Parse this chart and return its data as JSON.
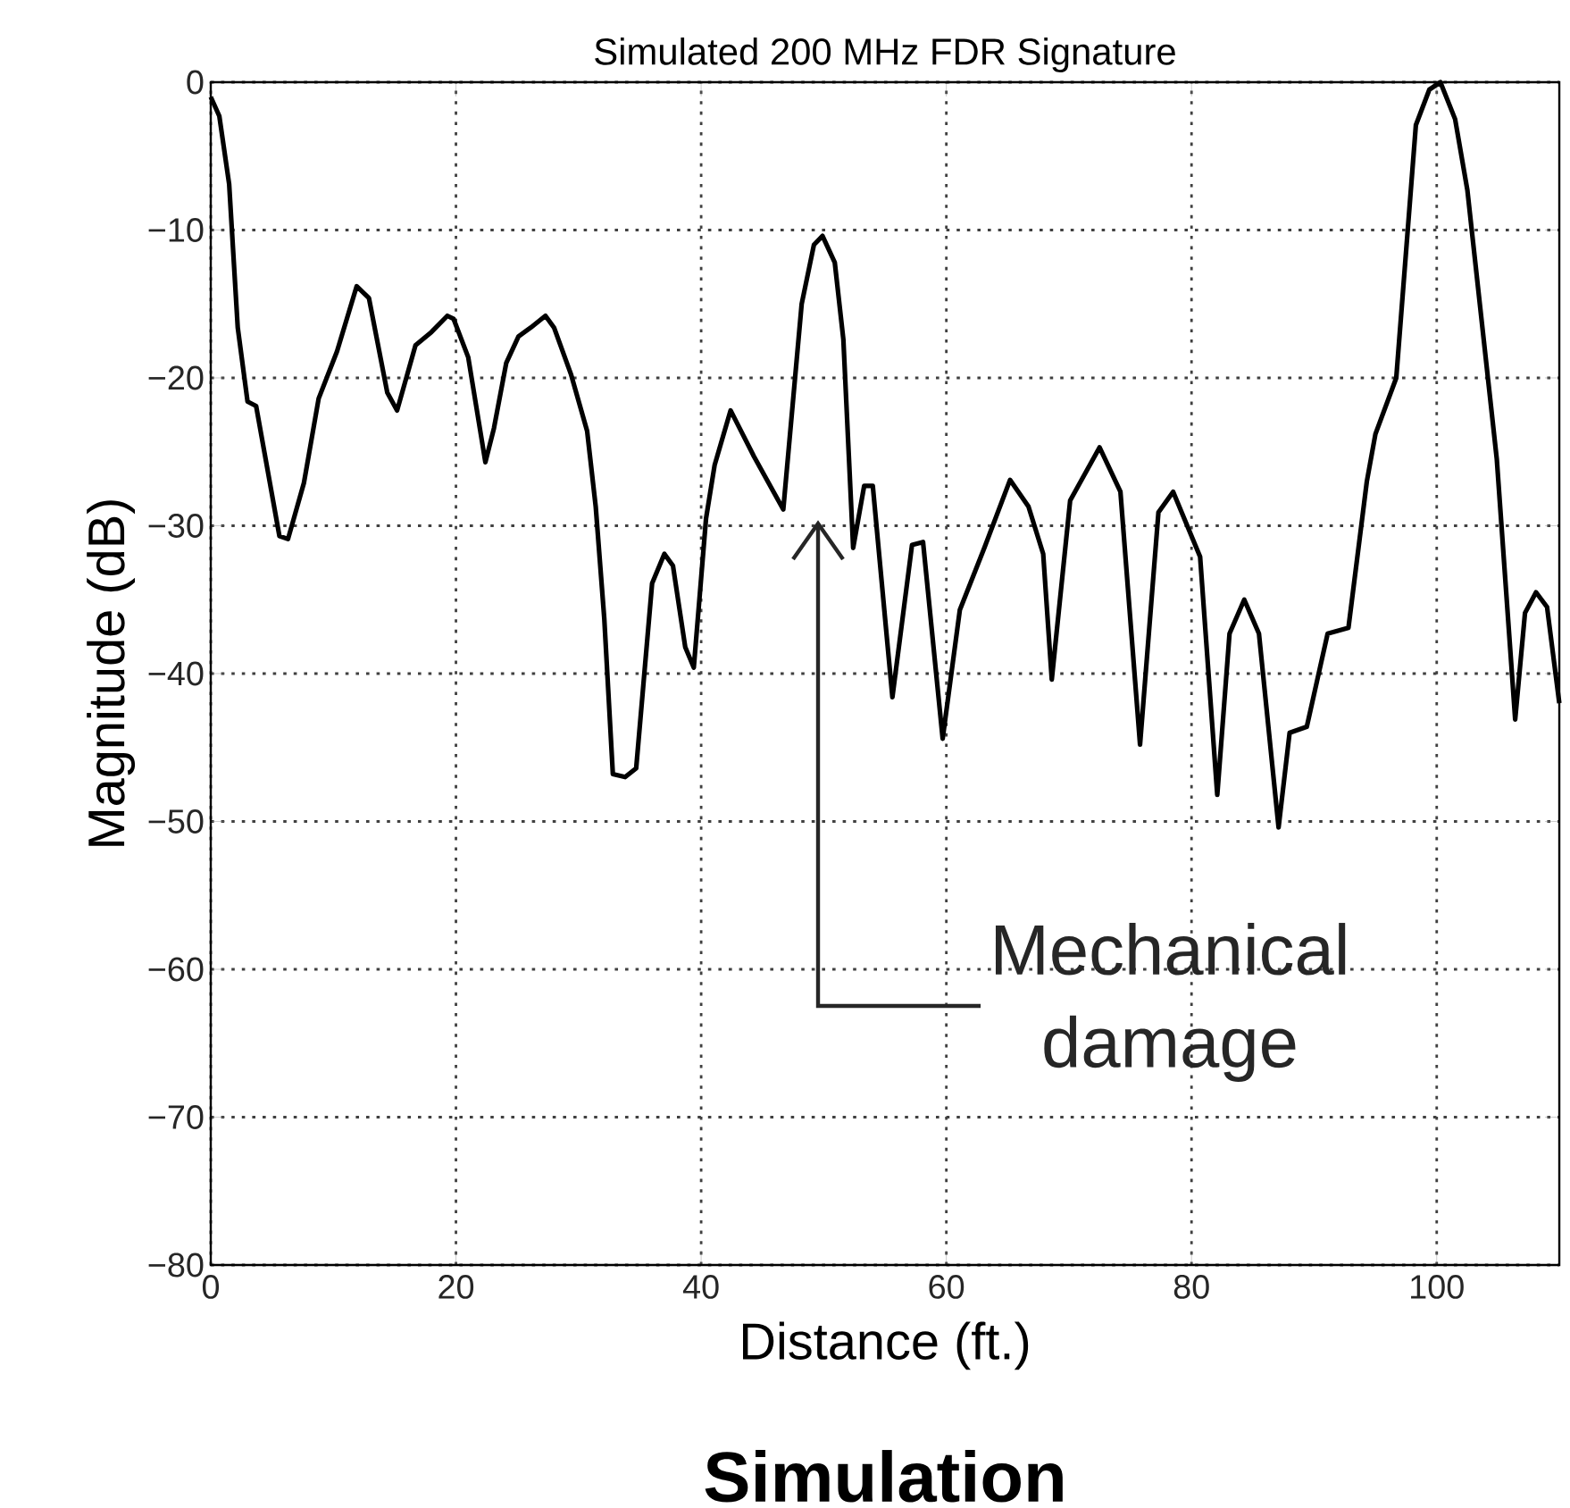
{
  "chart_data": {
    "type": "line",
    "title": "Simulated 200 MHz FDR Signature",
    "xlabel": "Distance (ft.)",
    "ylabel": "Magnitude (dB)",
    "annotations": [
      "Mechanical damage",
      "**Simulation**"
    ],
    "xlim": [
      0,
      110
    ],
    "ylim": [
      -80,
      0
    ],
    "xticks": [
      0,
      20,
      40,
      60,
      80,
      100
    ],
    "yticks": [
      {
        "value": -80,
        "label": "−80"
      },
      {
        "value": -70,
        "label": "−70"
      },
      {
        "value": -60,
        "label": "−60"
      },
      {
        "value": -50,
        "label": "−50"
      },
      {
        "value": -40,
        "label": "−40"
      },
      {
        "value": -30,
        "label": "−30"
      },
      {
        "value": -20,
        "label": "−20"
      },
      {
        "value": -10,
        "label": "−10"
      },
      0
    ],
    "grid": true,
    "series": [
      {
        "color": "#000000",
        "x": [
          0,
          0.7,
          1.5,
          2.2,
          3,
          3.7,
          5.6,
          6.3,
          7.6,
          8.8,
          10.3,
          11.9,
          12.9,
          14.4,
          15.2,
          16.7,
          18,
          19.3,
          19.8,
          21,
          22.4,
          23.1,
          24.1,
          25.1,
          26.1,
          27.3,
          28,
          29.4,
          30.7,
          31.4,
          32.1,
          32.8,
          33.8,
          34.7,
          36,
          37,
          37.7,
          38.7,
          39.4,
          40.4,
          41.1,
          42.4,
          44.3,
          46.7,
          48.2,
          49.2,
          49.9,
          50.9,
          51.6,
          52.4,
          53.3,
          54,
          55.6,
          57.2,
          58.1,
          59.7,
          61.1,
          63.1,
          65.2,
          66.7,
          67.9,
          68.6,
          70.1,
          72.5,
          74.2,
          75.8,
          77.3,
          78.5,
          80.7,
          82.1,
          83.1,
          84.3,
          85.5,
          87.1,
          88,
          89.4,
          91.1,
          92.8,
          94.3,
          95,
          96.7,
          98.3,
          99.4,
          100.3,
          101.5,
          102.5,
          104.9,
          106.4,
          107.2,
          108.1,
          109,
          110
        ],
        "values": [
          -1,
          -2.3,
          -6.9,
          -16.6,
          -21.6,
          -21.9,
          -30.7,
          -30.9,
          -27.1,
          -21.4,
          -18.2,
          -13.8,
          -14.6,
          -21,
          -22.2,
          -17.8,
          -16.9,
          -15.8,
          -16,
          -18.6,
          -25.7,
          -23.4,
          -19,
          -17.2,
          -16.6,
          -15.8,
          -16.6,
          -19.8,
          -23.6,
          -28.7,
          -36.3,
          -46.8,
          -47,
          -46.4,
          -33.9,
          -31.9,
          -32.7,
          -38.2,
          -39.6,
          -29.5,
          -25.9,
          -22.2,
          -25.3,
          -28.9,
          -15,
          -11,
          -10.4,
          -12.2,
          -17.4,
          -31.5,
          -27.3,
          -27.3,
          -41.6,
          -31.3,
          -31.1,
          -44.4,
          -35.7,
          -31.5,
          -26.9,
          -28.7,
          -31.9,
          -40.4,
          -28.3,
          -24.7,
          -27.7,
          -44.8,
          -29.1,
          -27.7,
          -32.1,
          -48.2,
          -37.3,
          -35,
          -37.3,
          -50.4,
          -44,
          -43.6,
          -37.3,
          -36.9,
          -27,
          -23.8,
          -20,
          -2.9,
          -0.5,
          0,
          -2.5,
          -7.3,
          -25.5,
          -43.1,
          -35.9,
          -34.5,
          -35.5,
          -42
        ]
      }
    ]
  }
}
